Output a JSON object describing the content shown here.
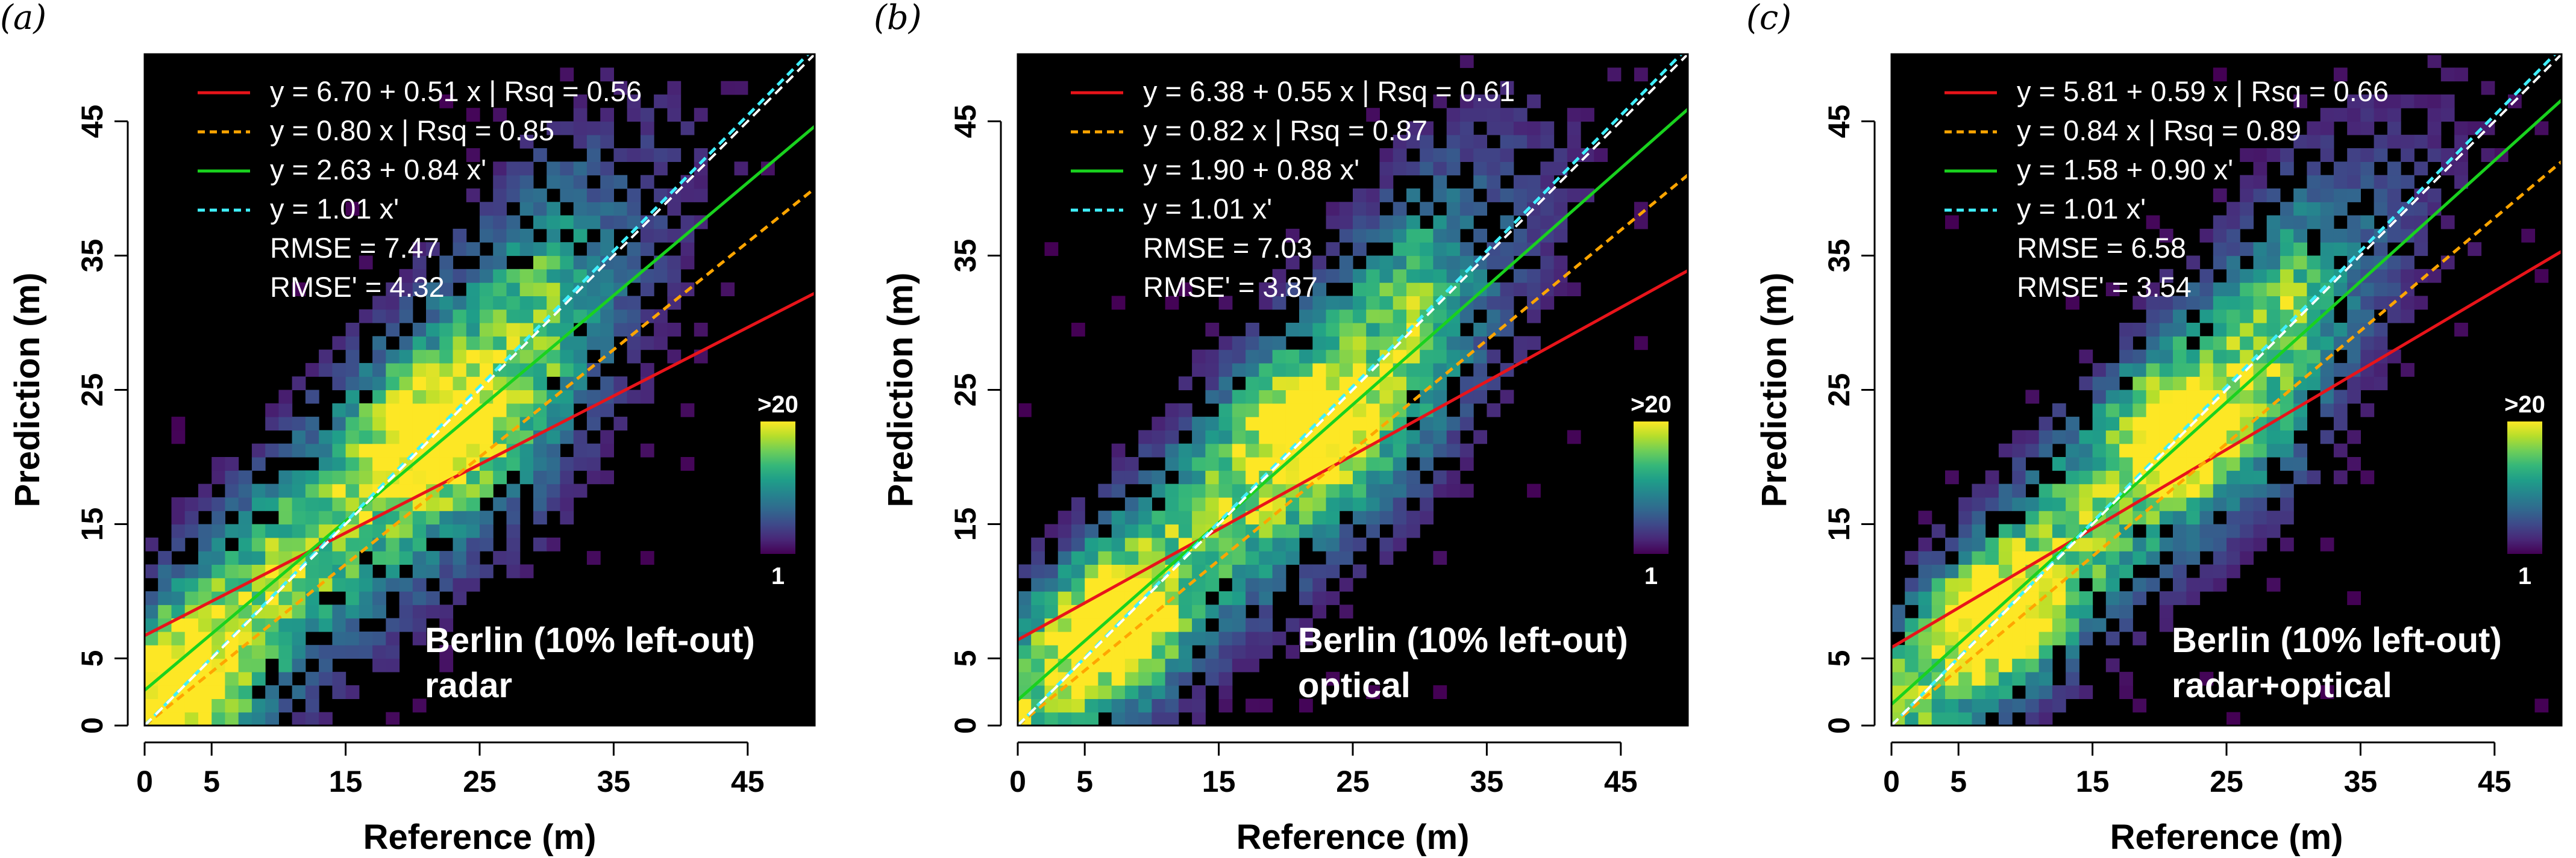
{
  "figure": {
    "colors": {
      "plot_background": "#000000",
      "fit_line": "#e8141a",
      "through_origin_line": "#ffa500",
      "error_corrected_fit": "#19d21e",
      "error_corrected_origin": "#40f0ff",
      "one_to_one": "#ffffff"
    },
    "colormap": "viridis",
    "icons": []
  },
  "chart_data": [
    {
      "type": "heatmap",
      "panel_label": "(a)",
      "xlabel": "Reference (m)",
      "ylabel": "Prediction (m)",
      "xlim": [
        0,
        50
      ],
      "ylim": [
        0,
        50
      ],
      "xticks": [
        0,
        5,
        15,
        25,
        35,
        45
      ],
      "yticks": [
        0,
        5,
        15,
        25,
        35,
        45
      ],
      "grid": false,
      "legend_position": "top-left",
      "colorbar": {
        "min_label": "1",
        "max_label": ">20",
        "position": "right"
      },
      "annotation": [
        "Berlin (10% left-out)",
        "radar"
      ],
      "lines": [
        {
          "legend": "y = 6.70 + 0.51 x | Rsq = 0.56",
          "intercept": 6.7,
          "slope": 0.51,
          "color": "#e8141a",
          "dashed": false
        },
        {
          "legend": "y = 0.80 x | Rsq = 0.85",
          "intercept": 0,
          "slope": 0.8,
          "color": "#ffa500",
          "dashed": true
        },
        {
          "legend": "y = 2.63 + 0.84 x'",
          "intercept": 2.63,
          "slope": 0.84,
          "color": "#19d21e",
          "dashed": false
        },
        {
          "legend": "y = 1.01 x'",
          "intercept": 0,
          "slope": 1.01,
          "color": "#40f0ff",
          "dashed": true
        }
      ],
      "stats": [
        "RMSE  = 7.47",
        "RMSE' = 4.32"
      ],
      "density_model": {
        "center_a": 1.6,
        "center_b": 0.93,
        "spread": 5.6,
        "peaks": [
          [
            3,
            3
          ],
          [
            21.5,
            21.5
          ]
        ]
      }
    },
    {
      "type": "heatmap",
      "panel_label": "(b)",
      "xlabel": "Reference (m)",
      "ylabel": "Prediction (m)",
      "xlim": [
        0,
        50
      ],
      "ylim": [
        0,
        50
      ],
      "xticks": [
        0,
        5,
        15,
        25,
        35,
        45
      ],
      "yticks": [
        0,
        5,
        15,
        25,
        35,
        45
      ],
      "grid": false,
      "legend_position": "top-left",
      "colorbar": {
        "min_label": "1",
        "max_label": ">20",
        "position": "right"
      },
      "annotation": [
        "Berlin (10% left-out)",
        "optical"
      ],
      "lines": [
        {
          "legend": "y = 6.38 + 0.55 x | Rsq = 0.61",
          "intercept": 6.38,
          "slope": 0.55,
          "color": "#e8141a",
          "dashed": false
        },
        {
          "legend": "y = 0.82 x | Rsq = 0.87",
          "intercept": 0,
          "slope": 0.82,
          "color": "#ffa500",
          "dashed": true
        },
        {
          "legend": "y = 1.90 + 0.88 x'",
          "intercept": 1.9,
          "slope": 0.88,
          "color": "#19d21e",
          "dashed": false
        },
        {
          "legend": "y = 1.01 x'",
          "intercept": 0,
          "slope": 1.01,
          "color": "#40f0ff",
          "dashed": true
        }
      ],
      "stats": [
        "RMSE  = 7.03",
        "RMSE' = 3.87"
      ],
      "density_model": {
        "center_a": 1.2,
        "center_b": 0.95,
        "spread": 5.2,
        "peaks": [
          [
            7,
            7
          ],
          [
            22,
            22
          ]
        ]
      }
    },
    {
      "type": "heatmap",
      "panel_label": "(c)",
      "xlabel": "Reference (m)",
      "ylabel": "Prediction (m)",
      "xlim": [
        0,
        50
      ],
      "ylim": [
        0,
        50
      ],
      "xticks": [
        0,
        5,
        15,
        25,
        35,
        45
      ],
      "yticks": [
        0,
        5,
        15,
        25,
        35,
        45
      ],
      "grid": false,
      "legend_position": "top-left",
      "colorbar": {
        "min_label": "1",
        "max_label": ">20",
        "position": "right"
      },
      "annotation": [
        "Berlin (10% left-out)",
        "radar+optical"
      ],
      "lines": [
        {
          "legend": "y = 5.81 + 0.59 x | Rsq = 0.66",
          "intercept": 5.81,
          "slope": 0.59,
          "color": "#e8141a",
          "dashed": false
        },
        {
          "legend": "y = 0.84 x | Rsq = 0.89",
          "intercept": 0,
          "slope": 0.84,
          "color": "#ffa500",
          "dashed": true
        },
        {
          "legend": "y = 1.58 + 0.90 x'",
          "intercept": 1.58,
          "slope": 0.9,
          "color": "#19d21e",
          "dashed": false
        },
        {
          "legend": "y = 1.01 x'",
          "intercept": 0,
          "slope": 1.01,
          "color": "#40f0ff",
          "dashed": true
        }
      ],
      "stats": [
        "RMSE  = 6.58",
        "RMSE' = 3.54"
      ],
      "density_model": {
        "center_a": 1.0,
        "center_b": 0.96,
        "spread": 4.8,
        "peaks": [
          [
            8,
            8
          ],
          [
            22,
            22
          ]
        ]
      }
    }
  ]
}
